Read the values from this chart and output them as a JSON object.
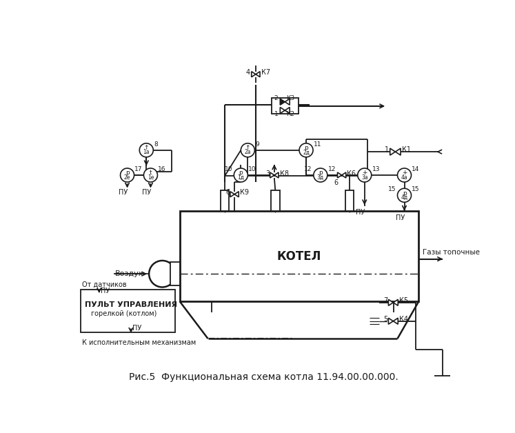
{
  "title": "Рис.5  Функциональная схема котла 11.94.00.00.000.",
  "bg_color": "#ffffff",
  "line_color": "#1a1a1a",
  "figsize": [
    7.47,
    6.28
  ],
  "dpi": 100,
  "boiler_label": "КОТЕЛ",
  "gas_label": "Газы топочные",
  "air_label": "Воздух",
  "panel_line1": "От датчиков",
  "panel_line2": "ПУЛЬТ УПРАВЛЕНИЯ",
  "panel_line3": "горелкой (котлом)",
  "panel_bottom": "К исполнительным механизмам"
}
